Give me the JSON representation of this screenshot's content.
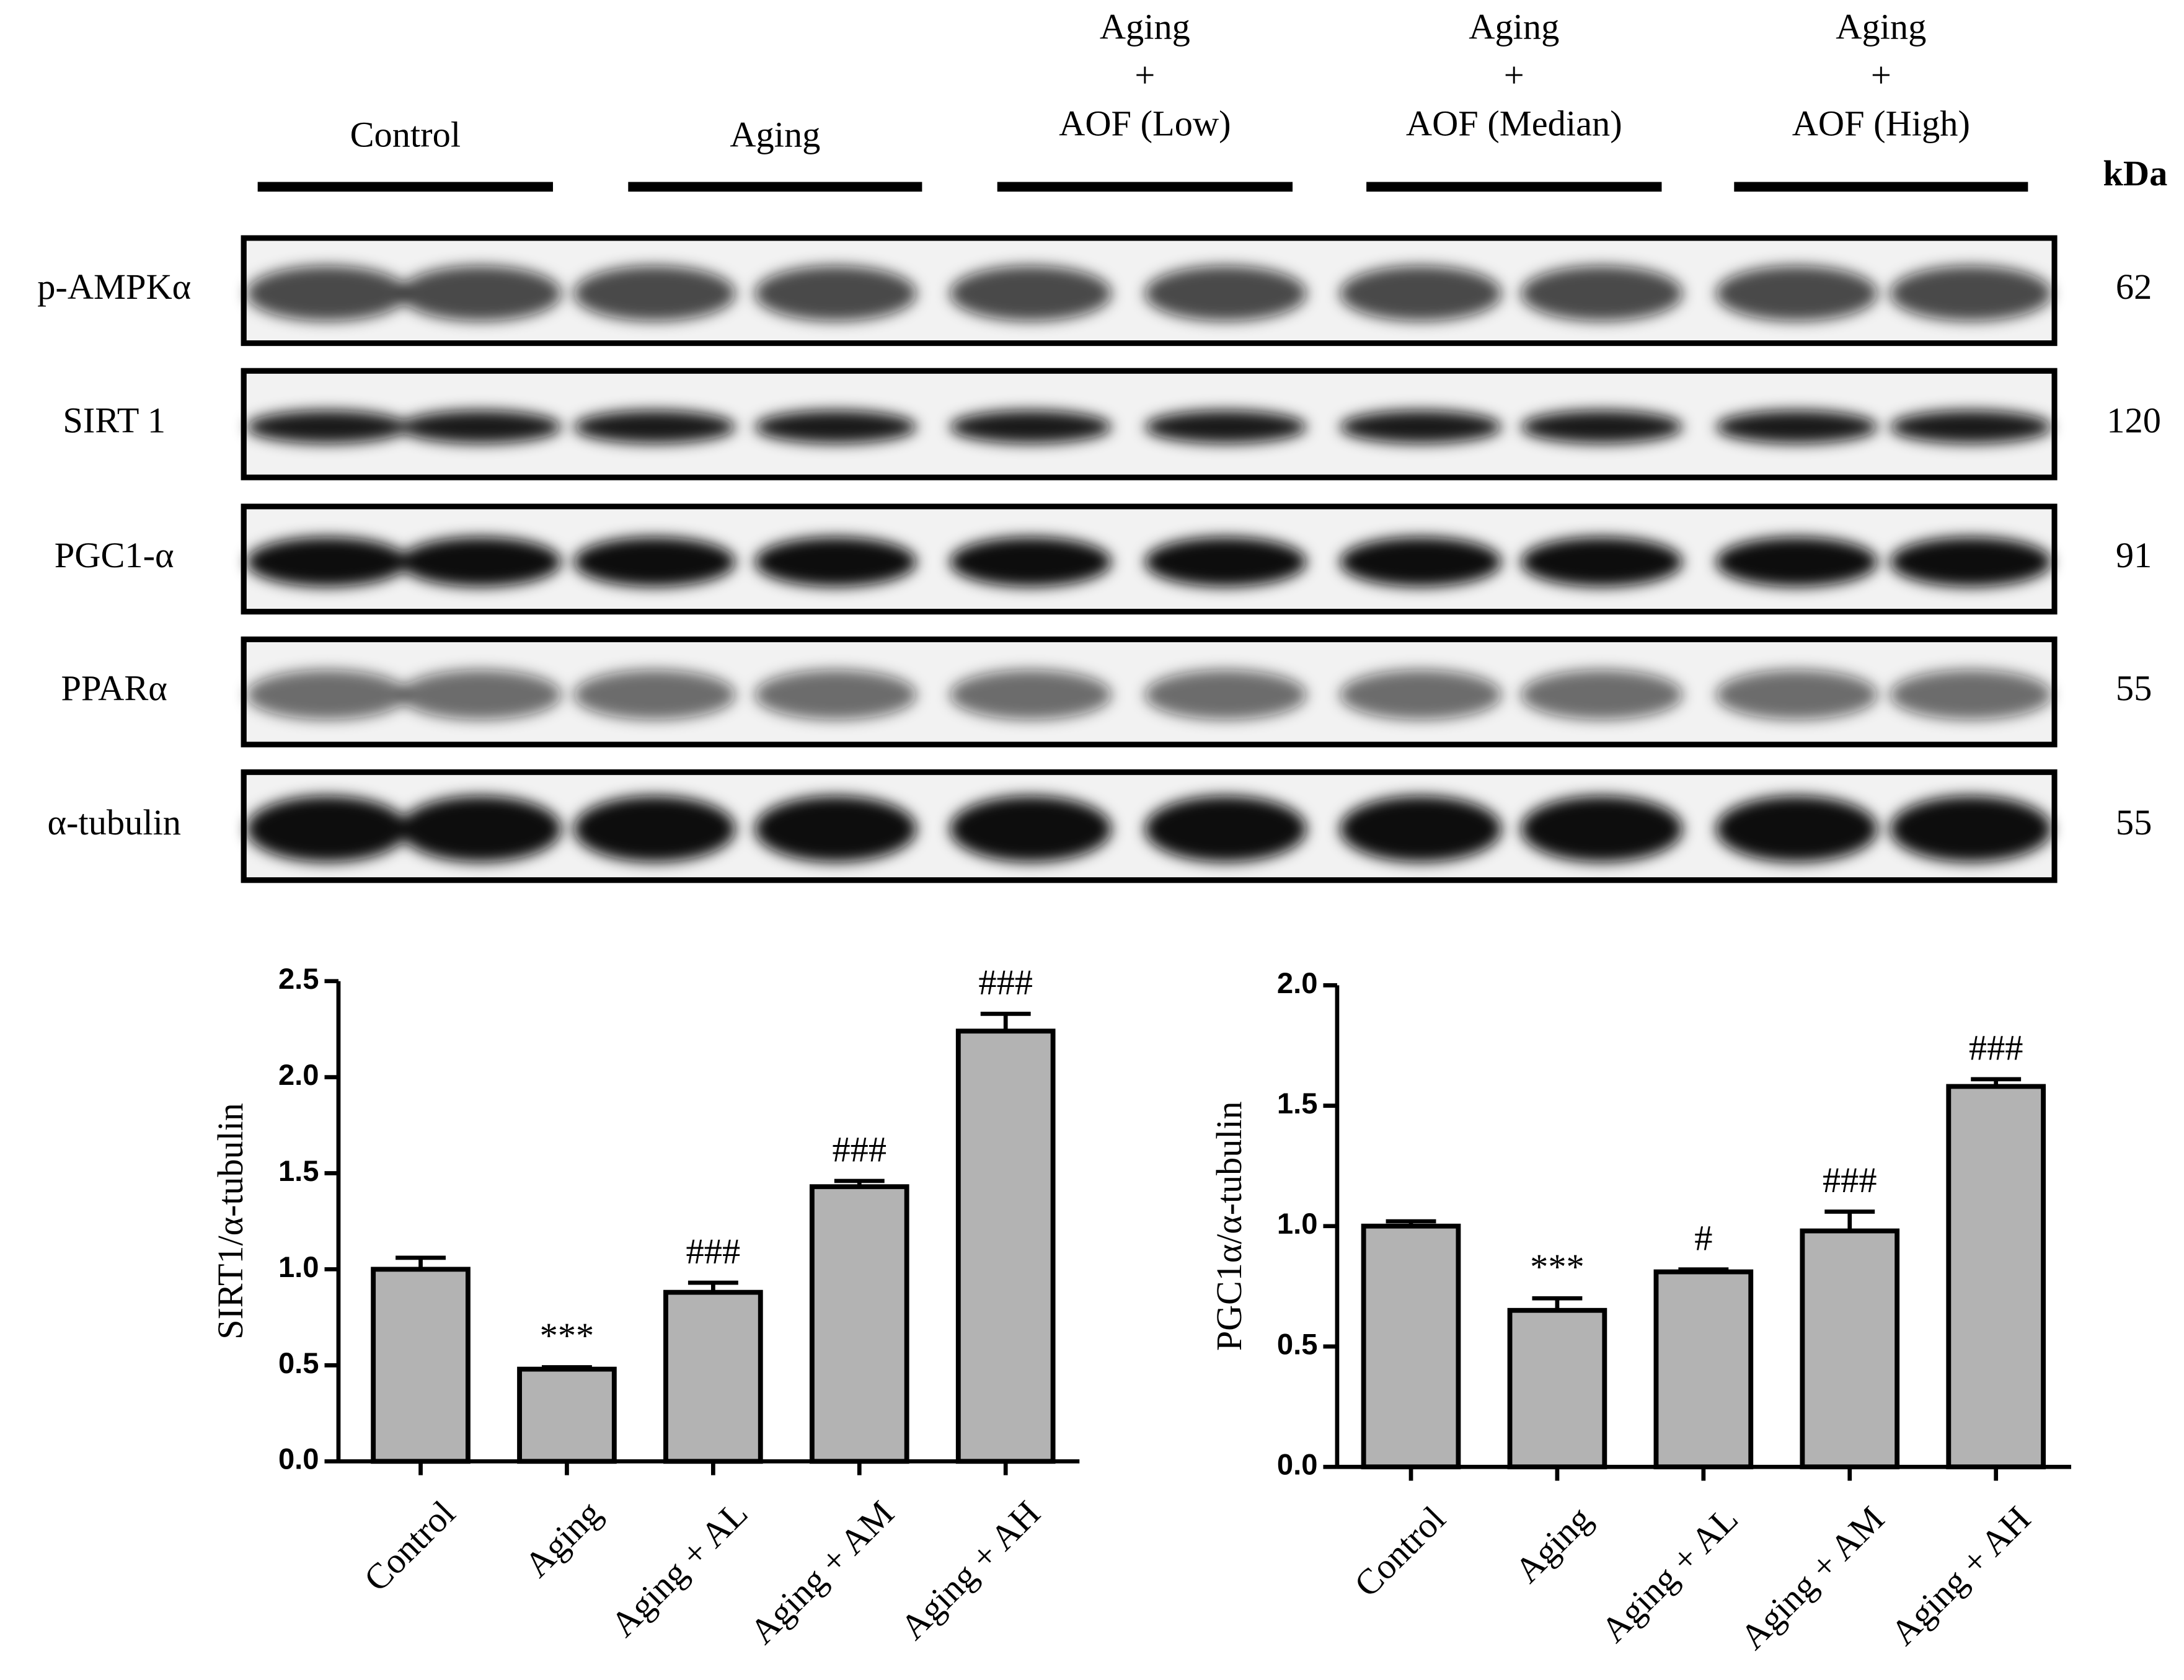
{
  "blot": {
    "groups": [
      [
        "Control"
      ],
      [
        "Aging"
      ],
      [
        "Aging",
        "+",
        "AOF (Low)"
      ],
      [
        "Aging",
        "+",
        "AOF (Median)"
      ],
      [
        "Aging",
        "+",
        "AOF (High)"
      ]
    ],
    "unit": "kDa",
    "proteins": [
      "p-AMPKα",
      "SIRT 1",
      "PGC1-α",
      "PPARα",
      "α-tubulin"
    ],
    "sizes": [
      62,
      120,
      91,
      55,
      55
    ]
  },
  "chart_data": [
    {
      "type": "bar",
      "ylabel": "SIRT1/α-tubulin",
      "categories": [
        "Control",
        "Aging",
        "Aging + AL",
        "Aging + AM",
        "Aging + AH"
      ],
      "values": [
        1.0,
        0.48,
        0.88,
        1.43,
        2.24
      ],
      "errors": [
        0.06,
        0.01,
        0.05,
        0.03,
        0.09
      ],
      "annotations": [
        null,
        "***",
        "###",
        "###",
        "###"
      ],
      "color": "#b3b3b3",
      "ylim": [
        0,
        2.5
      ],
      "yticks": [
        {
          "value": 0,
          "label": "0.0"
        },
        0.5,
        {
          "value": 1,
          "label": "1.0"
        },
        1.5,
        {
          "value": 2,
          "label": "2.0"
        },
        2.5
      ]
    },
    {
      "type": "bar",
      "ylabel": "PGC1α/α-tubulin",
      "categories": [
        "Control",
        "Aging",
        "Aging + AL",
        "Aging + AM",
        "Aging + AH"
      ],
      "values": [
        1.0,
        0.65,
        0.81,
        0.98,
        1.58
      ],
      "errors": [
        0.02,
        0.05,
        0.01,
        0.08,
        0.03
      ],
      "annotations": [
        null,
        "***",
        "#",
        "###",
        "###"
      ],
      "color": "#b3b3b3",
      "ylim": [
        0,
        2
      ],
      "yticks": [
        {
          "value": 0,
          "label": "0.0"
        },
        0.5,
        {
          "value": 1,
          "label": "1.0"
        },
        1.5,
        {
          "value": 2,
          "label": "2.0"
        }
      ]
    }
  ]
}
